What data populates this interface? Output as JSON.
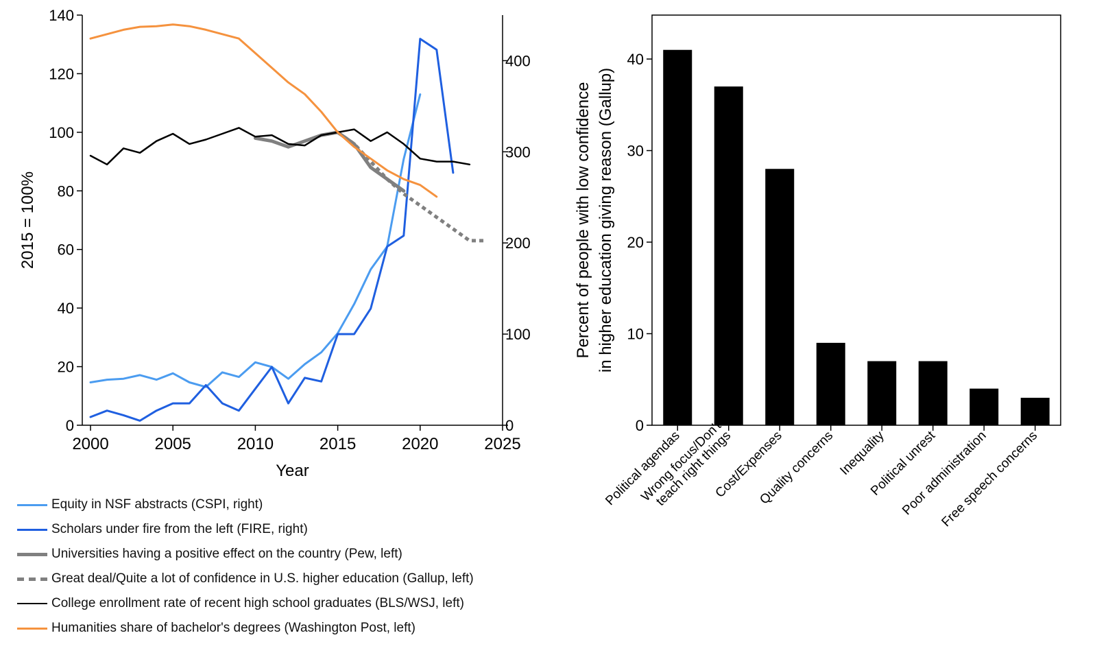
{
  "chart_data": [
    {
      "type": "line",
      "xlabel": "Year",
      "ylabel": "2015 = 100%",
      "xlim": [
        1999.5,
        2025
      ],
      "ylim": [
        0,
        140
      ],
      "y2lim": [
        0,
        450
      ],
      "x_ticks": [
        2000,
        2005,
        2010,
        2015,
        2020,
        2025
      ],
      "y_ticks": [
        0,
        20,
        40,
        60,
        80,
        100,
        120,
        140
      ],
      "y2_ticks": [
        0,
        100,
        200,
        300,
        400
      ],
      "legend_position": "bottom",
      "series": [
        {
          "name": "Equity in NSF abstracts (CSPI, right)",
          "axis": "right",
          "color": "#4b9cf0",
          "style": "solid",
          "width": 3,
          "x": [
            2000,
            2001,
            2002,
            2003,
            2004,
            2005,
            2006,
            2007,
            2008,
            2009,
            2010,
            2011,
            2012,
            2013,
            2014,
            2015,
            2016,
            2017,
            2018,
            2019,
            2020
          ],
          "y": [
            47,
            50,
            51,
            55,
            50,
            57,
            47,
            42,
            58,
            53,
            69,
            64,
            51,
            67,
            80,
            101,
            133,
            171,
            196,
            292,
            363
          ]
        },
        {
          "name": "Scholars under fire from the left (FIRE, right)",
          "axis": "right",
          "color": "#1f5fe0",
          "style": "solid",
          "width": 3,
          "x": [
            2000,
            2001,
            2002,
            2003,
            2004,
            2005,
            2006,
            2007,
            2008,
            2009,
            2010,
            2011,
            2012,
            2013,
            2014,
            2015,
            2016,
            2017,
            2018,
            2019,
            2020,
            2021,
            2022
          ],
          "y": [
            9,
            16,
            11,
            5,
            16,
            24,
            24,
            44,
            24,
            16,
            40,
            64,
            24,
            52,
            48,
            100,
            100,
            128,
            196,
            208,
            424,
            412,
            277
          ]
        },
        {
          "name": "Universities having a positive effect on the country (Pew, left)",
          "axis": "left",
          "color": "#808080",
          "style": "solid",
          "width": 5,
          "x": [
            2010,
            2011,
            2012,
            2013,
            2014,
            2015,
            2016,
            2017,
            2018,
            2019
          ],
          "y": [
            98,
            97,
            95,
            97,
            99,
            100,
            96,
            88,
            84,
            80
          ]
        },
        {
          "name": "Great deal/Quite a lot of confidence in U.S. higher education (Gallup, left)",
          "axis": "left",
          "color": "#808080",
          "style": "dotted",
          "width": 5,
          "x": [
            2015,
            2016,
            2017,
            2018,
            2019,
            2020,
            2021,
            2022,
            2023,
            2024
          ],
          "y": [
            100,
            96,
            90,
            84,
            79,
            75,
            71,
            67,
            63,
            63
          ]
        },
        {
          "name": "College enrollment rate of recent high school graduates (BLS/WSJ, left)",
          "axis": "left",
          "color": "#000000",
          "style": "solid",
          "width": 2.5,
          "x": [
            2000,
            2001,
            2002,
            2003,
            2004,
            2005,
            2006,
            2007,
            2008,
            2009,
            2010,
            2011,
            2012,
            2013,
            2014,
            2015,
            2016,
            2017,
            2018,
            2019,
            2020,
            2021,
            2022,
            2023
          ],
          "y": [
            92,
            89,
            94.5,
            93,
            97,
            99.5,
            96,
            97.5,
            99.5,
            101.5,
            98.5,
            99,
            96,
            95.5,
            99,
            100,
            101,
            97,
            100,
            96,
            91,
            90,
            90,
            89
          ]
        },
        {
          "name": "Humanities share of bachelor's degrees (Washington Post, left)",
          "axis": "left",
          "color": "#f5923e",
          "style": "solid",
          "width": 3,
          "x": [
            2000,
            2001,
            2002,
            2003,
            2004,
            2005,
            2006,
            2007,
            2008,
            2009,
            2010,
            2011,
            2012,
            2013,
            2014,
            2015,
            2016,
            2017,
            2018,
            2019,
            2020,
            2021
          ],
          "y": [
            132,
            133.5,
            135,
            136,
            136.2,
            136.8,
            136.2,
            135,
            133.5,
            132,
            127,
            122,
            117,
            113,
            107,
            100,
            95,
            91,
            87,
            84,
            82,
            78
          ]
        }
      ]
    },
    {
      "type": "bar",
      "ylabel_lines": [
        "Percent of people with low confidence",
        "in higher education giving reason (Gallup)"
      ],
      "ylim": [
        0,
        44.8
      ],
      "y_ticks": [
        0,
        10,
        20,
        30,
        40
      ],
      "categories": [
        [
          "Political agendas"
        ],
        [
          "Wrong focus/Don't",
          "teach right things"
        ],
        [
          "Cost/Expenses"
        ],
        [
          "Quality concerns"
        ],
        [
          "Inequality"
        ],
        [
          "Political unrest"
        ],
        [
          "Poor administration"
        ],
        [
          "Free speech concerns"
        ]
      ],
      "values": [
        41,
        37,
        28,
        9,
        7,
        7,
        4,
        3
      ],
      "bar_color": "#000000"
    }
  ]
}
